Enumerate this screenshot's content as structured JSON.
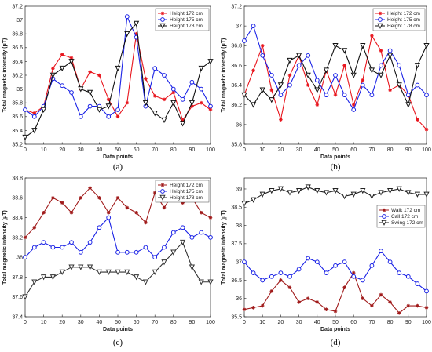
{
  "chart_data": [
    {
      "type": "line",
      "caption": "(a)",
      "xlabel": "Data points",
      "ylabel": "Total magnetic intensity (μT)",
      "xlim": [
        0,
        100
      ],
      "ylim": [
        35.2,
        37.2
      ],
      "xticks": [
        0,
        10,
        20,
        30,
        40,
        50,
        60,
        70,
        80,
        90,
        100
      ],
      "yticks": [
        35.2,
        35.4,
        35.6,
        35.8,
        36,
        36.2,
        36.4,
        36.6,
        36.8,
        37,
        37.2
      ],
      "ytick_labels": [
        "35.2",
        "35.4",
        "35.6",
        "35.8",
        "36",
        "36.2",
        "36.4",
        "36.6",
        "36.8",
        "37",
        "37.2"
      ],
      "legend_position": "top-right",
      "series": [
        {
          "name": "Height 172 cm",
          "color": "#e8141c",
          "marker": "star",
          "x": [
            0,
            5,
            10,
            15,
            20,
            25,
            30,
            35,
            40,
            45,
            50,
            55,
            60,
            65,
            70,
            75,
            80,
            85,
            90,
            95,
            100
          ],
          "values": [
            35.7,
            35.65,
            35.75,
            36.3,
            36.5,
            36.45,
            36.0,
            36.25,
            36.2,
            35.85,
            35.6,
            35.8,
            36.8,
            36.15,
            35.9,
            35.85,
            35.95,
            35.55,
            35.75,
            35.8,
            35.7
          ]
        },
        {
          "name": "Height 175 cm",
          "color": "#1a22e6",
          "marker": "circle",
          "x": [
            0,
            5,
            10,
            15,
            20,
            25,
            30,
            35,
            40,
            45,
            50,
            55,
            60,
            65,
            70,
            75,
            80,
            85,
            90,
            95,
            100
          ],
          "values": [
            35.7,
            35.6,
            35.75,
            36.15,
            36.05,
            35.95,
            35.6,
            35.75,
            35.75,
            35.6,
            35.7,
            37.05,
            36.75,
            35.75,
            36.3,
            36.2,
            36.0,
            35.85,
            36.1,
            36.0,
            35.75
          ]
        },
        {
          "name": "Height 178 cm",
          "color": "#111111",
          "marker": "triangle-down",
          "x": [
            0,
            5,
            10,
            15,
            20,
            25,
            30,
            35,
            40,
            45,
            50,
            55,
            60,
            65,
            70,
            75,
            80,
            85,
            90,
            95,
            100
          ],
          "values": [
            35.3,
            35.4,
            35.7,
            36.2,
            36.3,
            36.4,
            36.0,
            35.95,
            35.7,
            35.75,
            36.3,
            36.8,
            36.95,
            35.8,
            35.65,
            35.55,
            35.8,
            35.5,
            35.8,
            36.3,
            36.4
          ]
        }
      ]
    },
    {
      "type": "line",
      "caption": "(b)",
      "xlabel": "Data points",
      "ylabel": "Total magnetic intensity (μT)",
      "xlim": [
        0,
        100
      ],
      "ylim": [
        35.8,
        37.2
      ],
      "xticks": [
        0,
        10,
        20,
        30,
        40,
        50,
        60,
        70,
        80,
        90,
        100
      ],
      "yticks": [
        35.8,
        36,
        36.2,
        36.4,
        36.6,
        36.8,
        37,
        37.2
      ],
      "ytick_labels": [
        "35.8",
        "36",
        "36.2",
        "36.4",
        "36.6",
        "36.8",
        "37",
        "37.2"
      ],
      "legend_position": "top-right",
      "series": [
        {
          "name": "Height 172 cm",
          "color": "#e8141c",
          "marker": "star",
          "x": [
            0,
            5,
            10,
            15,
            20,
            25,
            30,
            35,
            40,
            45,
            50,
            55,
            60,
            65,
            70,
            75,
            80,
            85,
            90,
            95,
            100
          ],
          "values": [
            36.3,
            36.55,
            36.8,
            36.35,
            36.05,
            36.5,
            36.7,
            36.4,
            36.2,
            36.55,
            36.3,
            36.6,
            36.2,
            36.45,
            36.9,
            36.75,
            36.35,
            36.4,
            36.3,
            36.05,
            35.95
          ]
        },
        {
          "name": "Height 175 cm",
          "color": "#1a22e6",
          "marker": "circle",
          "x": [
            0,
            5,
            10,
            15,
            20,
            25,
            30,
            35,
            40,
            45,
            50,
            55,
            60,
            65,
            70,
            75,
            80,
            85,
            90,
            95,
            100
          ],
          "values": [
            36.85,
            37.0,
            36.7,
            36.5,
            36.3,
            36.4,
            36.6,
            36.7,
            36.45,
            36.3,
            36.5,
            36.3,
            36.15,
            36.4,
            36.3,
            36.6,
            36.75,
            36.6,
            36.3,
            36.4,
            36.3
          ]
        },
        {
          "name": "Height 178 cm",
          "color": "#111111",
          "marker": "triangle-down",
          "x": [
            0,
            5,
            10,
            15,
            20,
            25,
            30,
            35,
            40,
            45,
            50,
            55,
            60,
            65,
            70,
            75,
            80,
            85,
            90,
            95,
            100
          ],
          "values": [
            36.3,
            36.2,
            36.35,
            36.25,
            36.4,
            36.65,
            36.7,
            36.5,
            36.35,
            36.55,
            36.8,
            36.75,
            36.5,
            36.8,
            36.55,
            36.5,
            36.7,
            36.4,
            36.2,
            36.6,
            36.8
          ]
        }
      ]
    },
    {
      "type": "line",
      "caption": "(c)",
      "xlabel": "Data points",
      "ylabel": "Total magnetic intensity (μT)",
      "xlim": [
        0,
        100
      ],
      "ylim": [
        37.4,
        38.8
      ],
      "xticks": [
        0,
        10,
        20,
        30,
        40,
        50,
        60,
        70,
        80,
        90,
        100
      ],
      "yticks": [
        37.4,
        37.6,
        37.8,
        38,
        38.2,
        38.4,
        38.6,
        38.8
      ],
      "ytick_labels": [
        "37.4",
        "37.6",
        "37.8",
        "38",
        "38.2",
        "38.4",
        "38.6",
        "38.8"
      ],
      "legend_position": "top-right",
      "series": [
        {
          "name": "Height 172 cm",
          "color": "#a01a1a",
          "marker": "star",
          "x": [
            0,
            5,
            10,
            15,
            20,
            25,
            30,
            35,
            40,
            45,
            50,
            55,
            60,
            65,
            70,
            75,
            80,
            85,
            90,
            95,
            100
          ],
          "values": [
            38.2,
            38.3,
            38.45,
            38.6,
            38.55,
            38.45,
            38.6,
            38.7,
            38.6,
            38.45,
            38.6,
            38.5,
            38.45,
            38.35,
            38.65,
            38.5,
            38.65,
            38.55,
            38.6,
            38.45,
            38.4
          ]
        },
        {
          "name": "Height 175 cm",
          "color": "#1a22e6",
          "marker": "circle",
          "x": [
            0,
            5,
            10,
            15,
            20,
            25,
            30,
            35,
            40,
            45,
            50,
            55,
            60,
            65,
            70,
            75,
            80,
            85,
            90,
            95,
            100
          ],
          "values": [
            38.0,
            38.1,
            38.15,
            38.1,
            38.1,
            38.15,
            38.05,
            38.15,
            38.3,
            38.4,
            38.05,
            38.05,
            38.05,
            38.1,
            38.0,
            38.1,
            38.25,
            38.3,
            38.2,
            38.25,
            38.2
          ]
        },
        {
          "name": "Height 178 cm",
          "color": "#333333",
          "marker": "triangle-down",
          "x": [
            0,
            5,
            10,
            15,
            20,
            25,
            30,
            35,
            40,
            45,
            50,
            55,
            60,
            65,
            70,
            75,
            80,
            85,
            90,
            95,
            100
          ],
          "values": [
            37.6,
            37.75,
            37.8,
            37.8,
            37.85,
            37.9,
            37.9,
            37.9,
            37.85,
            37.85,
            37.85,
            37.85,
            37.8,
            37.75,
            37.85,
            37.95,
            38.05,
            38.15,
            37.9,
            37.75,
            37.75
          ]
        }
      ]
    },
    {
      "type": "line",
      "caption": "(d)",
      "xlabel": "Data points",
      "ylabel": "Total magnetic intensity (μT)",
      "xlim": [
        0,
        100
      ],
      "ylim": [
        35.5,
        39.3
      ],
      "xticks": [
        0,
        10,
        20,
        30,
        40,
        50,
        60,
        70,
        80,
        90,
        100
      ],
      "yticks": [
        35.5,
        36,
        36.5,
        37,
        37.5,
        38,
        38.5,
        39
      ],
      "ytick_labels": [
        "35.5",
        "36",
        "36.5",
        "37",
        "37.5",
        "38",
        "38.5",
        "39"
      ],
      "legend_position": "center-right",
      "series": [
        {
          "name": "Walk 172 cm",
          "color": "#a01a1a",
          "marker": "star",
          "x": [
            0,
            5,
            10,
            15,
            20,
            25,
            30,
            35,
            40,
            45,
            50,
            55,
            60,
            65,
            70,
            75,
            80,
            85,
            90,
            95,
            100
          ],
          "values": [
            35.7,
            35.75,
            35.8,
            36.2,
            36.5,
            36.3,
            35.9,
            36.0,
            35.9,
            35.7,
            35.65,
            36.3,
            36.7,
            36.0,
            35.8,
            36.1,
            35.9,
            35.6,
            35.8,
            35.8,
            35.75
          ]
        },
        {
          "name": "Call 172 cm",
          "color": "#1a22e6",
          "marker": "circle",
          "x": [
            0,
            5,
            10,
            15,
            20,
            25,
            30,
            35,
            40,
            45,
            50,
            55,
            60,
            65,
            70,
            75,
            80,
            85,
            90,
            95,
            100
          ],
          "values": [
            37.0,
            36.7,
            36.5,
            36.6,
            36.7,
            36.6,
            36.8,
            37.1,
            37.0,
            36.7,
            36.9,
            37.0,
            36.6,
            36.5,
            36.9,
            37.3,
            37.0,
            36.7,
            36.6,
            36.4,
            36.2
          ]
        },
        {
          "name": "Swing 172 cm",
          "color": "#222222",
          "marker": "triangle-down",
          "x": [
            0,
            5,
            10,
            15,
            20,
            25,
            30,
            35,
            40,
            45,
            50,
            55,
            60,
            65,
            70,
            75,
            80,
            85,
            90,
            95,
            100
          ],
          "values": [
            38.6,
            38.7,
            38.85,
            38.95,
            39.0,
            38.9,
            38.95,
            39.05,
            38.95,
            38.9,
            38.95,
            38.8,
            38.85,
            38.95,
            38.8,
            38.9,
            38.95,
            39.0,
            38.9,
            38.85,
            38.85
          ]
        }
      ]
    }
  ]
}
